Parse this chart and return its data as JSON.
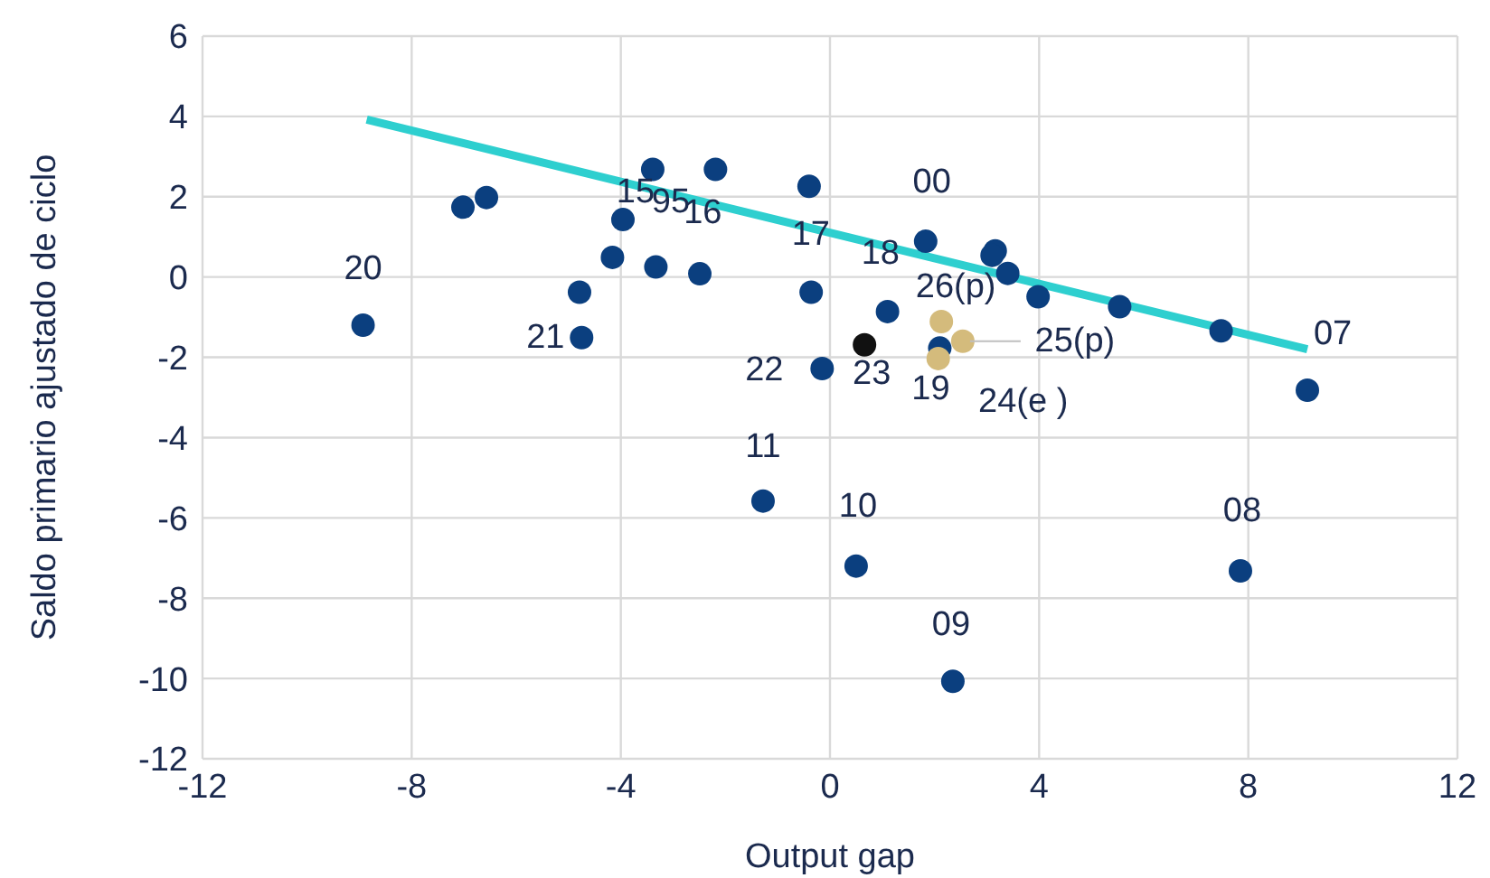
{
  "chart_data": {
    "type": "scatter",
    "xlabel": "Output gap",
    "ylabel": "Saldo primario ajustado de ciclo",
    "xlim": [
      -12,
      12
    ],
    "xticks": [
      -12,
      -8,
      -4,
      0,
      4,
      8,
      12
    ],
    "ylim": [
      -12,
      6
    ],
    "yticks": [
      -12,
      -10,
      -8,
      -6,
      -4,
      -2,
      0,
      2,
      4,
      6
    ],
    "grid": true,
    "legend": false,
    "marker": "circle",
    "series": [
      {
        "color": "#0b3f7f",
        "x": [
          -8.93,
          -7.02,
          -6.57,
          -4.79,
          -4.75,
          -4.16,
          -3.96,
          -3.39,
          -3.33,
          -2.19,
          -2.49,
          -0.4,
          -0.36,
          -0.15,
          -1.28,
          1.83,
          3.16,
          3.1,
          3.4,
          3.98,
          5.54,
          7.48,
          9.13,
          1.1,
          2.1,
          0.5,
          2.35,
          7.85
        ],
        "values": [
          -1.2,
          1.74,
          1.98,
          -0.38,
          -1.51,
          0.49,
          1.43,
          2.68,
          0.25,
          2.68,
          0.08,
          2.26,
          -0.38,
          -2.28,
          -5.58,
          0.89,
          0.65,
          0.54,
          0.09,
          -0.49,
          -0.74,
          -1.34,
          -2.82,
          -0.86,
          -1.77,
          -7.2,
          -10.07,
          -7.32
        ]
      },
      {
        "color": "#111111",
        "x": [
          0.66
        ],
        "values": [
          -1.69
        ]
      },
      {
        "color": "#d4bb7c",
        "x": [
          2.13,
          2.54,
          2.07
        ],
        "values": [
          -1.11,
          -1.6,
          -2.03
        ]
      },
      {
        "type": "line",
        "marker": "none",
        "color": "#2ecfcf",
        "x": [
          -8.86,
          9.13
        ],
        "values": [
          3.92,
          -1.8
        ]
      }
    ],
    "annotations": [
      {
        "text": "20",
        "x": -8.93,
        "y": -1.2
      },
      {
        "text": "15",
        "x": -3.96,
        "y": 1.43
      },
      {
        "text": "95",
        "x": -3.39,
        "y": 2.68
      },
      {
        "text": "16",
        "x": -2.19,
        "y": 2.68
      },
      {
        "text": "17",
        "x": -0.4,
        "y": 2.26
      },
      {
        "text": "00",
        "x": 3.16,
        "y": 0.65
      },
      {
        "text": "18",
        "x": 1.83,
        "y": 0.89
      },
      {
        "text": "26(p)",
        "x": 2.13,
        "y": -1.11
      },
      {
        "text": "25(p)",
        "x": 2.54,
        "y": -1.6
      },
      {
        "text": "24(e )",
        "x": 2.07,
        "y": -2.03
      },
      {
        "text": "19",
        "x": 2.1,
        "y": -1.77
      },
      {
        "text": "23",
        "x": 0.66,
        "y": -1.69
      },
      {
        "text": "22",
        "x": -0.15,
        "y": -2.28
      },
      {
        "text": "21",
        "x": -4.75,
        "y": -1.51
      },
      {
        "text": "11",
        "x": -1.28,
        "y": -5.58
      },
      {
        "text": "10",
        "x": 0.5,
        "y": -7.2
      },
      {
        "text": "09",
        "x": 2.35,
        "y": -10.07
      },
      {
        "text": "08",
        "x": 7.85,
        "y": -7.32
      },
      {
        "text": "07",
        "x": 9.13,
        "y": -2.82
      }
    ]
  }
}
